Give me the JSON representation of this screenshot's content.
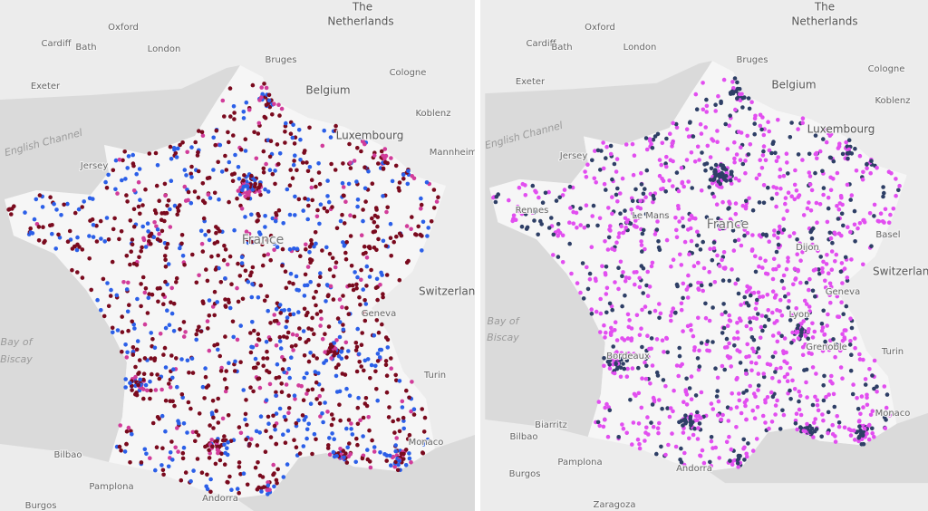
{
  "panels": [
    {
      "labels": [
        "The",
        "Netherlands",
        "Cardiff",
        "Oxford",
        "Bath",
        "London",
        "Exeter",
        "Bruges",
        "Belgium",
        "Cologne",
        "Koblenz",
        "Luxembourg",
        "Mannheim",
        "English Channel",
        "Jersey",
        "France",
        "Switzerland",
        "Bay of",
        "Biscay",
        "Geneva",
        "Turin",
        "Monaco",
        "Bilbao",
        "Pamplona",
        "Andorra",
        "Burgos"
      ]
    },
    {
      "labels": [
        "The",
        "Netherlands",
        "Cardiff",
        "Oxford",
        "Bath",
        "London",
        "Exeter",
        "Bruges",
        "Belgium",
        "Cologne",
        "Koblenz",
        "Luxembourg",
        "English Channel",
        "Jersey",
        "Rennes",
        "Le Mans",
        "France",
        "Dijon",
        "Basel",
        "Switzerland",
        "Bay of",
        "Biscay",
        "Geneva",
        "Lyon",
        "Grenoble",
        "Turin",
        "Bordeaux",
        "Biarritz",
        "Bilbao",
        "Pamplona",
        "Andorra",
        "Monaco",
        "Burgos",
        "Zaragoza"
      ]
    }
  ]
}
